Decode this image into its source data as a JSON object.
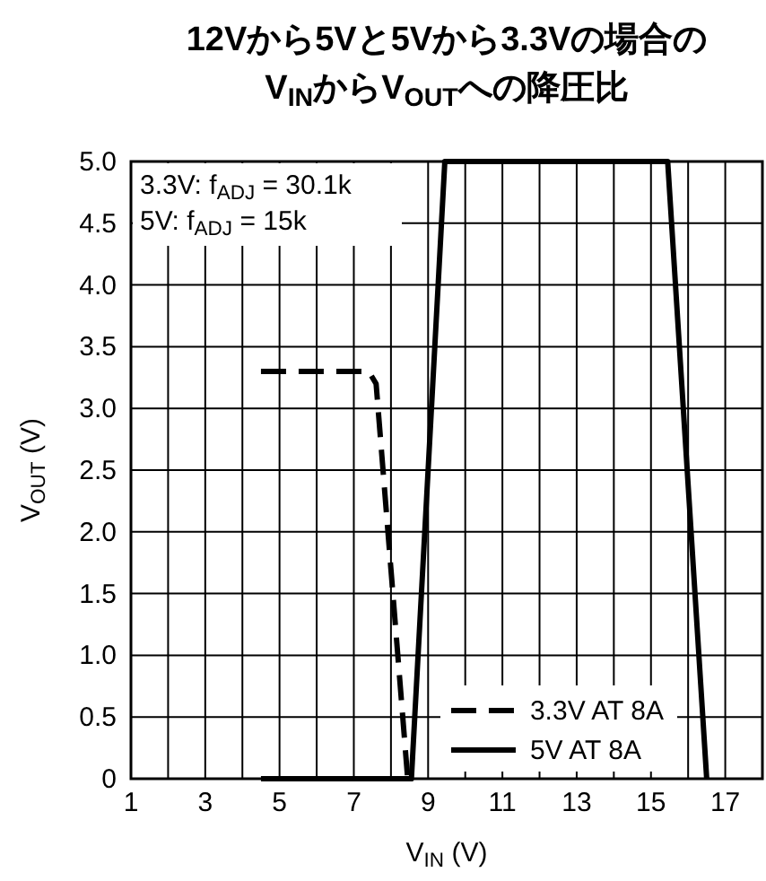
{
  "chart_data": {
    "type": "line",
    "title": "12Vから5Vと5Vから3.3Vの場合の\nV$_{IN}$からV$_{OUT}$への降圧比",
    "xlabel": "V$_{IN}$ (V)",
    "ylabel": "V$_{OUT}$ (V)",
    "series": [
      {
        "name": "3.3V AT 8A",
        "color": "#000000",
        "line_style": "dashed",
        "x": [
          4.5,
          7.4,
          7.6,
          8.45
        ],
        "values": [
          3.3,
          3.3,
          3.2,
          0
        ]
      },
      {
        "name": "5V AT 8A",
        "color": "#000000",
        "line_style": "solid",
        "x": [
          4.5,
          8.55,
          9.45,
          15.45,
          16.5
        ],
        "values": [
          0,
          0,
          5,
          5,
          0
        ]
      }
    ],
    "xlim": [
      1,
      18
    ],
    "xticks": [
      1,
      {
        "value": 2,
        "label": null
      },
      3,
      {
        "value": 4,
        "label": null
      },
      5,
      {
        "value": 6,
        "label": null
      },
      7,
      {
        "value": 8,
        "label": null
      },
      9,
      {
        "value": 10,
        "label": null
      },
      11,
      {
        "value": 12,
        "label": null
      },
      13,
      {
        "value": 14,
        "label": null
      },
      15,
      {
        "value": 16,
        "label": null
      },
      17
    ],
    "ylim": [
      0,
      5
    ],
    "yticks": [
      0,
      0.5,
      {
        "value": 1,
        "label": "1.0"
      },
      1.5,
      {
        "value": 2,
        "label": "2.0"
      },
      2.5,
      {
        "value": 3,
        "label": "3.0"
      },
      3.5,
      {
        "value": 4,
        "label": "4.0"
      },
      4.5,
      {
        "value": 5,
        "label": "5.0"
      }
    ],
    "grid": true,
    "legend": "bottom right",
    "marker": "none",
    "annotations": [
      "3.3V: f$_{ADJ}$ = 30.1k",
      "5V: f$_{ADJ}$ = 15k"
    ]
  }
}
